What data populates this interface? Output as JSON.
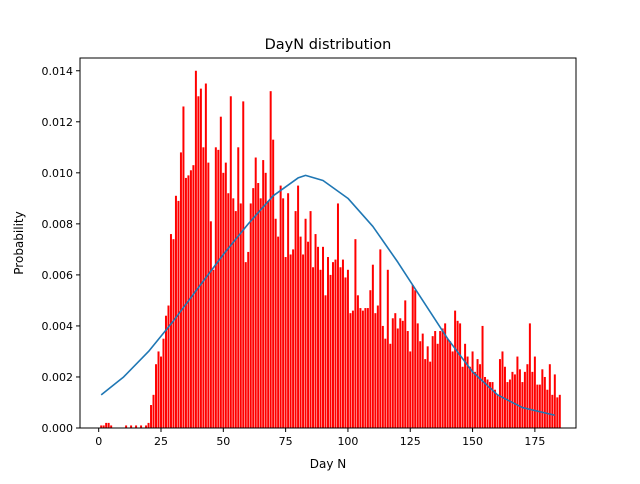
{
  "chart_data": {
    "type": "bar",
    "title": "DayN distribution",
    "xlabel": "Day N",
    "ylabel": "Probability",
    "xlim": [
      -7.5,
      191.5
    ],
    "ylim": [
      0,
      0.0145
    ],
    "xticks": [
      0,
      25,
      50,
      75,
      100,
      125,
      150,
      175
    ],
    "yticks": [
      0.0,
      0.002,
      0.004,
      0.006,
      0.008,
      0.01,
      0.012,
      0.014
    ],
    "ytick_labels": [
      "0.000",
      "0.002",
      "0.004",
      "0.006",
      "0.008",
      "0.010",
      "0.012",
      "0.014"
    ],
    "grid": false,
    "bar_color": "#ff0000",
    "line_color": "#1f77b4",
    "bars": {
      "x_start": 1,
      "values": [
        0.0001,
        0.0001,
        0.0002,
        0.0002,
        0.0001,
        0,
        0,
        0,
        0,
        0,
        0.0001,
        0,
        0.0001,
        0,
        0.0001,
        0,
        0.0001,
        0,
        0.0001,
        0.0002,
        0.0009,
        0.0013,
        0.0025,
        0.003,
        0.0028,
        0.0035,
        0.0044,
        0.0048,
        0.0076,
        0.0074,
        0.0091,
        0.0089,
        0.0108,
        0.0126,
        0.0098,
        0.0099,
        0.0101,
        0.0103,
        0.014,
        0.013,
        0.0133,
        0.011,
        0.0135,
        0.0104,
        0.0081,
        0.0062,
        0.011,
        0.0109,
        0.0122,
        0.01,
        0.0104,
        0.0092,
        0.013,
        0.009,
        0.0085,
        0.011,
        0.0088,
        0.0128,
        0.0065,
        0.0069,
        0.0088,
        0.0094,
        0.0106,
        0.0096,
        0.009,
        0.0105,
        0.01,
        0.0089,
        0.0132,
        0.0113,
        0.0082,
        0.0075,
        0.0095,
        0.009,
        0.0067,
        0.0092,
        0.0068,
        0.007,
        0.0085,
        0.0095,
        0.0075,
        0.0068,
        0.0082,
        0.0073,
        0.0085,
        0.0063,
        0.0076,
        0.0071,
        0.0062,
        0.0071,
        0.0052,
        0.0067,
        0.006,
        0.0065,
        0.0066,
        0.0088,
        0.0063,
        0.0066,
        0.0059,
        0.0062,
        0.0045,
        0.0046,
        0.0074,
        0.0052,
        0.0047,
        0.0046,
        0.0047,
        0.0047,
        0.0054,
        0.0064,
        0.0045,
        0.0048,
        0.007,
        0.004,
        0.0035,
        0.0062,
        0.0033,
        0.0043,
        0.0045,
        0.0039,
        0.0043,
        0.0042,
        0.005,
        0.0038,
        0.003,
        0.0056,
        0.0054,
        0.0041,
        0.0034,
        0.0037,
        0.0027,
        0.0032,
        0.0026,
        0.0036,
        0.0038,
        0.0033,
        0.0038,
        0.0039,
        0.0041,
        0.0035,
        0.0034,
        0.003,
        0.0046,
        0.0042,
        0.0041,
        0.0024,
        0.0033,
        0.0028,
        0.0024,
        0.003,
        0.0022,
        0.0027,
        0.0025,
        0.004,
        0.002,
        0.0019,
        0.0018,
        0.0018,
        0.0015,
        0.0013,
        0.0027,
        0.003,
        0.0024,
        0.0018,
        0.0019,
        0.0022,
        0.0021,
        0.0028,
        0.0023,
        0.0018,
        0.0022,
        0.0025,
        0.0041,
        0.0022,
        0.0028,
        0.0017,
        0.0017,
        0.0023,
        0.002,
        0.0015,
        0.0025,
        0.0013,
        0.0021,
        0.0012,
        0.0013
      ]
    },
    "fit_curve": {
      "x": [
        1,
        10,
        20,
        30,
        40,
        50,
        60,
        70,
        80,
        83,
        90,
        100,
        110,
        120,
        130,
        140,
        150,
        160,
        170,
        183
      ],
      "y": [
        0.0013,
        0.002,
        0.003,
        0.0042,
        0.0055,
        0.0068,
        0.008,
        0.0091,
        0.0098,
        0.0099,
        0.0097,
        0.009,
        0.0079,
        0.0065,
        0.005,
        0.0035,
        0.0022,
        0.0013,
        0.0008,
        0.0005
      ]
    }
  }
}
